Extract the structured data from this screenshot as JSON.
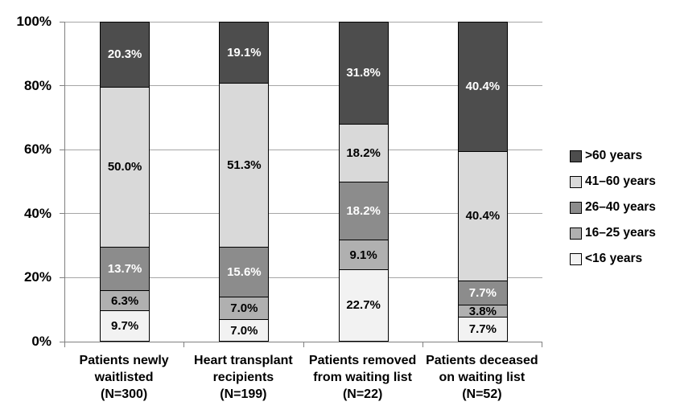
{
  "chart_data": {
    "type": "bar",
    "variant": "stacked-100-percent",
    "title": "",
    "xlabel": "",
    "ylabel": "",
    "grid": true,
    "y_axis": {
      "min": 0,
      "max": 100,
      "tick_labels": [
        "0%",
        "20%",
        "40%",
        "60%",
        "80%",
        "100%"
      ]
    },
    "categories": [
      {
        "lines": [
          "Patients newly",
          "waitlisted",
          "(N=300)"
        ]
      },
      {
        "lines": [
          "Heart transplant",
          "recipients",
          "(N=199)"
        ]
      },
      {
        "lines": [
          "Patients removed",
          "from waiting list",
          "(N=22)"
        ]
      },
      {
        "lines": [
          "Patients deceased",
          "on waiting list",
          "(N=52)"
        ]
      }
    ],
    "series": [
      {
        "name": "<16 years",
        "fill": "#f2f2f2",
        "label_color": "#000000",
        "values": [
          9.7,
          7.0,
          22.7,
          7.7
        ],
        "labels": [
          "9.7%",
          "7.0%",
          "22.7%",
          "7.7%"
        ]
      },
      {
        "name": "16–25 years",
        "fill": "#b0b0b0",
        "label_color": "#000000",
        "values": [
          6.3,
          7.0,
          9.1,
          3.8
        ],
        "labels": [
          "6.3%",
          "7.0%",
          "9.1%",
          "3.8%"
        ]
      },
      {
        "name": "26–40 years",
        "fill": "#8c8c8c",
        "label_color": "#ffffff",
        "values": [
          13.7,
          15.6,
          18.2,
          7.7
        ],
        "labels": [
          "13.7%",
          "15.6%",
          "18.2%",
          "7.7%"
        ]
      },
      {
        "name": "41–60 years",
        "fill": "#d9d9d9",
        "label_color": "#000000",
        "values": [
          50.0,
          51.3,
          18.2,
          40.4
        ],
        "labels": [
          "50.0%",
          "51.3%",
          "18.2%",
          "40.4%"
        ]
      },
      {
        "name": ">60 years",
        "fill": "#4d4d4d",
        "label_color": "#ffffff",
        "values": [
          20.3,
          19.1,
          31.8,
          40.4
        ],
        "labels": [
          "20.3%",
          "19.1%",
          "31.8%",
          "40.4%"
        ]
      }
    ],
    "legend": {
      "position": "right",
      "entries": [
        ">60 years",
        "41–60 years",
        "26–40 years",
        "16–25 years",
        "<16 years"
      ]
    },
    "colors": {
      "axis": "#808080",
      "gridline": "#a6a6a6",
      "bar_border": "#000000",
      "background": "#ffffff"
    }
  }
}
